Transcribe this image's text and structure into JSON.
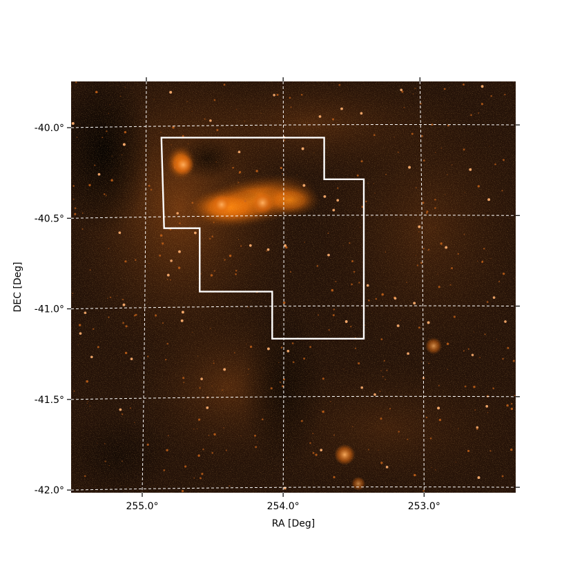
{
  "chart_data": {
    "type": "image",
    "title": "",
    "xlabel": "RA [Deg]",
    "ylabel": "DEC [Deg]",
    "xlim": [
      255.55,
      252.3
    ],
    "ylim": [
      -42.03,
      -39.76
    ],
    "x_ticks": [
      {
        "value": 255.0,
        "label": "255.0°"
      },
      {
        "value": 254.0,
        "label": "254.0°"
      },
      {
        "value": 253.0,
        "label": "253.0°"
      }
    ],
    "y_ticks": [
      {
        "value": -40.0,
        "label": "-40.0°"
      },
      {
        "value": -40.5,
        "label": "-40.5°"
      },
      {
        "value": -41.0,
        "label": "-41.0°"
      },
      {
        "value": -41.5,
        "label": "-41.5°"
      },
      {
        "value": -42.0,
        "label": "-42.0°"
      }
    ],
    "grid": true,
    "grid_style": "dashed",
    "grid_color": "#ffffff",
    "colormap": "afmhot",
    "background_color": "#241208",
    "emission_color": "#ff7a00",
    "region_outline": {
      "color": "#ffffff",
      "vertices": [
        [
          254.89,
          -40.07
        ],
        [
          253.7,
          -40.07
        ],
        [
          253.7,
          -40.3
        ],
        [
          253.41,
          -40.3
        ],
        [
          253.41,
          -41.18
        ],
        [
          254.08,
          -41.18
        ],
        [
          254.08,
          -40.92
        ],
        [
          254.61,
          -40.92
        ],
        [
          254.61,
          -40.57
        ],
        [
          254.87,
          -40.57
        ]
      ]
    },
    "bright_sources": [
      {
        "ra": 254.73,
        "dec": -40.22,
        "strength": 0.9
      },
      {
        "ra": 254.15,
        "dec": -40.43,
        "strength": 1.0
      },
      {
        "ra": 254.45,
        "dec": -40.44,
        "strength": 0.85
      },
      {
        "ra": 253.55,
        "dec": -41.82,
        "strength": 0.9
      },
      {
        "ra": 252.9,
        "dec": -41.22,
        "strength": 0.6
      },
      {
        "ra": 253.45,
        "dec": -41.98,
        "strength": 0.4
      }
    ]
  }
}
